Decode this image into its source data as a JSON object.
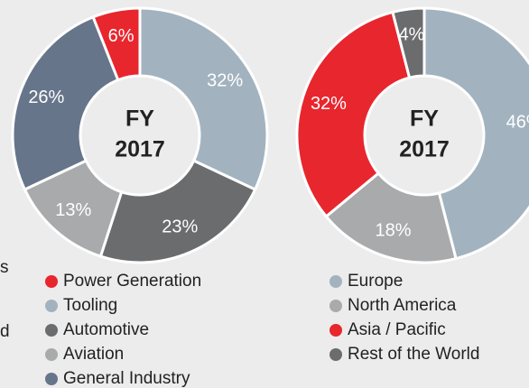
{
  "fragments": [
    "s",
    "d"
  ],
  "chart_data": [
    {
      "type": "donut",
      "center_text": [
        "FY",
        "2017"
      ],
      "categories": [
        "Power Generation",
        "Tooling",
        "Automotive",
        "Aviation",
        "General Industry"
      ],
      "values": [
        6,
        32,
        23,
        13,
        26
      ],
      "value_labels": [
        "6%",
        "32%",
        "23%",
        "13%",
        "26%"
      ],
      "colors": [
        "#e8262d",
        "#a2b3bf",
        "#6b6c6e",
        "#a9aaac",
        "#66758a"
      ]
    },
    {
      "type": "donut",
      "center_text": [
        "FY",
        "2017"
      ],
      "categories": [
        "Europe",
        "North America",
        "Asia / Pacific",
        "Rest of the World"
      ],
      "values": [
        46,
        18,
        32,
        4
      ],
      "value_labels": [
        "46%",
        "18%",
        "32%",
        "4%"
      ],
      "colors": [
        "#a2b3bf",
        "#a9aaac",
        "#e8262d",
        "#6b6c6e"
      ]
    }
  ]
}
